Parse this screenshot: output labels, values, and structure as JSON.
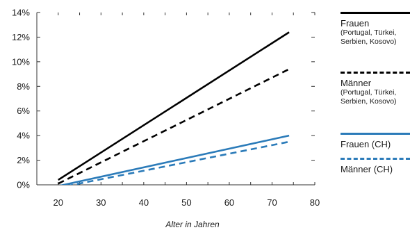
{
  "chart_data": {
    "type": "line",
    "xlabel": "Alter in Jahren",
    "ylabel": "",
    "xlim": [
      15,
      80
    ],
    "ylim": [
      0,
      14
    ],
    "x_ticks": [
      "20",
      "30",
      "40",
      "50",
      "60",
      "70",
      "80"
    ],
    "y_ticks": [
      "0%",
      "2%",
      "4%",
      "6%",
      "8%",
      "10%",
      "12%",
      "14%"
    ],
    "grid": false,
    "legend_position": "right",
    "series": [
      {
        "name": "Frauen",
        "note": "(Portugal, Türkei, Serbien, Kosovo)",
        "color": "#000000",
        "dash": "solid",
        "x": [
          20,
          74
        ],
        "y": [
          0.4,
          12.4
        ]
      },
      {
        "name": "Männer",
        "note": "(Portugal, Türkei, Serbien, Kosovo)",
        "color": "#000000",
        "dash": "dashed",
        "x": [
          20,
          74
        ],
        "y": [
          0.1,
          9.4
        ]
      },
      {
        "name": "Frauen (CH)",
        "note": "",
        "color": "#2b7bb9",
        "dash": "solid",
        "x": [
          20,
          74
        ],
        "y": [
          -0.1,
          4.0
        ]
      },
      {
        "name": "Männer (CH)",
        "note": "",
        "color": "#2b7bb9",
        "dash": "dashed",
        "x": [
          22,
          74
        ],
        "y": [
          -0.1,
          3.5
        ]
      }
    ]
  }
}
